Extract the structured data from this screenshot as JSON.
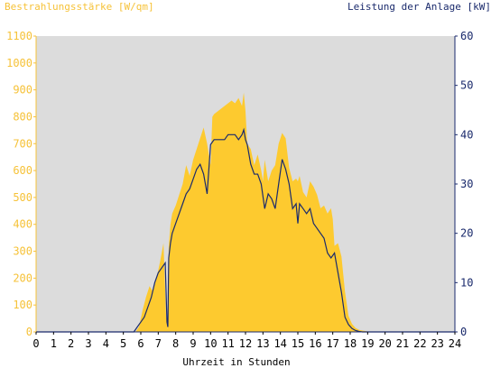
{
  "chart_data": {
    "type": "area",
    "title_left": "Bestrahlungsstärke [W/qm]",
    "title_right": "Leistung der Anlage [kW]",
    "xlabel": "Uhrzeit in Stunden",
    "x_ticks": [
      "0",
      "1",
      "2",
      "3",
      "4",
      "5",
      "6",
      "7",
      "8",
      "9",
      "10",
      "11",
      "12",
      "13",
      "14",
      "15",
      "16",
      "17",
      "18",
      "19",
      "20",
      "21",
      "22",
      "23",
      "24"
    ],
    "y_left_ticks": [
      "0",
      "100",
      "200",
      "300",
      "400",
      "500",
      "600",
      "700",
      "800",
      "900",
      "1000",
      "1100"
    ],
    "y_right_ticks": [
      "0",
      "10",
      "20",
      "30",
      "40",
      "50",
      "60"
    ],
    "xlim": [
      0,
      24
    ],
    "ylim_left": [
      0,
      1100
    ],
    "ylim_right": [
      0,
      60
    ],
    "colors": {
      "plot_background": "#dcdcdc",
      "irradiance_fill": "#fdca2f",
      "power_line": "#1a2a6c",
      "left_axis": "#f6c238",
      "right_axis": "#1a2a6c"
    },
    "series": [
      {
        "name": "Bestrahlungsstärke [W/qm]",
        "axis": "left",
        "style": "area",
        "x": [
          0,
          5.7,
          5.9,
          6.1,
          6.3,
          6.5,
          6.7,
          6.9,
          7.1,
          7.3,
          7.45,
          7.55,
          7.6,
          7.7,
          7.8,
          8.0,
          8.2,
          8.4,
          8.6,
          8.8,
          9.0,
          9.2,
          9.4,
          9.6,
          9.8,
          10.0,
          10.1,
          10.2,
          10.4,
          10.6,
          10.8,
          11.0,
          11.2,
          11.4,
          11.6,
          11.8,
          11.9,
          12.0,
          12.05,
          12.1,
          12.3,
          12.5,
          12.7,
          12.9,
          13.0,
          13.1,
          13.3,
          13.5,
          13.7,
          13.9,
          14.1,
          14.3,
          14.5,
          14.7,
          14.9,
          15.0,
          15.1,
          15.3,
          15.5,
          15.7,
          15.9,
          16.1,
          16.3,
          16.5,
          16.7,
          16.9,
          17.0,
          17.1,
          17.3,
          17.5,
          17.7,
          17.9,
          18.1,
          18.3,
          18.5,
          18.7,
          18.9,
          19.1,
          19.3,
          19.5,
          24
        ],
        "y": [
          0,
          0,
          20,
          80,
          130,
          170,
          150,
          200,
          260,
          330,
          60,
          10,
          320,
          400,
          440,
          470,
          510,
          550,
          620,
          580,
          640,
          680,
          720,
          760,
          700,
          620,
          800,
          810,
          820,
          830,
          840,
          850,
          860,
          850,
          870,
          840,
          890,
          820,
          760,
          700,
          680,
          620,
          660,
          600,
          560,
          640,
          560,
          600,
          620,
          700,
          740,
          720,
          610,
          560,
          570,
          560,
          580,
          520,
          500,
          560,
          540,
          510,
          460,
          470,
          440,
          460,
          420,
          320,
          330,
          280,
          150,
          60,
          30,
          15,
          8,
          5,
          3,
          0,
          0,
          0,
          0
        ]
      },
      {
        "name": "Leistung der Anlage [kW]",
        "axis": "right",
        "style": "line",
        "x": [
          0,
          5.6,
          5.8,
          6.0,
          6.2,
          6.4,
          6.6,
          6.8,
          7.0,
          7.2,
          7.4,
          7.5,
          7.55,
          7.6,
          7.7,
          7.8,
          8.0,
          8.2,
          8.4,
          8.6,
          8.8,
          9.0,
          9.2,
          9.4,
          9.6,
          9.8,
          10.0,
          10.2,
          10.4,
          10.6,
          10.8,
          11.0,
          11.2,
          11.4,
          11.6,
          11.8,
          11.9,
          12.0,
          12.1,
          12.3,
          12.5,
          12.7,
          12.9,
          13.1,
          13.3,
          13.5,
          13.7,
          13.9,
          14.1,
          14.3,
          14.5,
          14.7,
          14.9,
          15.0,
          15.1,
          15.3,
          15.5,
          15.7,
          15.9,
          16.1,
          16.3,
          16.5,
          16.7,
          16.9,
          17.1,
          17.3,
          17.5,
          17.7,
          17.9,
          18.1,
          18.3,
          18.5,
          18.7,
          18.9,
          19.1,
          19.3,
          19.5,
          24
        ],
        "y": [
          0,
          0,
          1,
          2,
          3,
          5,
          7,
          10,
          12,
          13,
          14,
          2,
          1,
          15,
          18,
          20,
          22,
          24,
          26,
          28,
          29,
          31,
          33,
          34,
          32,
          28,
          38,
          39,
          39,
          39,
          39,
          40,
          40,
          40,
          39,
          40,
          41,
          39,
          38,
          34,
          32,
          32,
          30,
          25,
          28,
          27,
          25,
          30,
          35,
          33,
          30,
          25,
          26,
          22,
          26,
          25,
          24,
          25,
          22,
          21,
          20,
          19,
          16,
          15,
          16,
          12,
          8,
          3,
          1.5,
          0.7,
          0.3,
          0.1,
          0,
          0,
          0,
          0,
          0,
          0
        ]
      }
    ]
  }
}
